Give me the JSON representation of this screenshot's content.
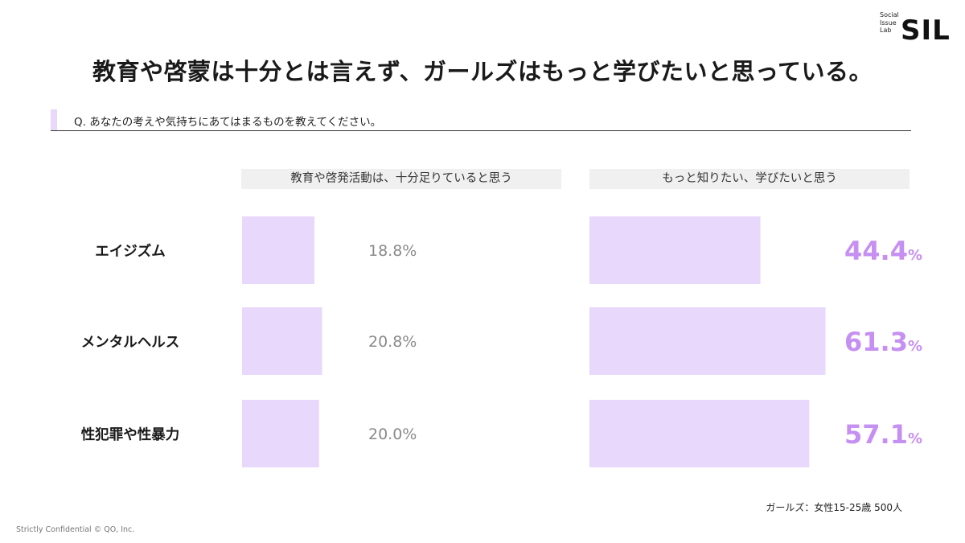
{
  "logo": {
    "small_lines": [
      "Social",
      "Issue",
      "Lab"
    ],
    "big": "SIL"
  },
  "title": "教育や啓蒙は十分とは言えず、ガールズはもっと学びたいと思っている。",
  "question": "Q. あなたの考えや気持ちにあてはまるものを教えてください。",
  "chart_data": {
    "type": "bar",
    "categories": [
      "エイジズム",
      "メンタルヘルス",
      "性犯罪や性暴力"
    ],
    "series": [
      {
        "name": "教育や啓発活動は、十分足りていると思う",
        "values": [
          18.8,
          20.8,
          20.0
        ],
        "labels": [
          "18.8%",
          "20.8%",
          "20.0%"
        ]
      },
      {
        "name": "もっと知りたい、学びたいと思う",
        "values": [
          44.4,
          61.3,
          57.1
        ],
        "labels": [
          "44.4",
          "61.3",
          "57.1"
        ],
        "unit": "%"
      }
    ],
    "bar_color": "#e8d8fb",
    "highlight_color": "#c68ff2",
    "muted_label_color": "#8a8a8a",
    "xlim": [
      0,
      100
    ]
  },
  "footnote": "ガールズ：女性15-25歳 500人",
  "copyright": "Strictly Confidential © QO, Inc."
}
